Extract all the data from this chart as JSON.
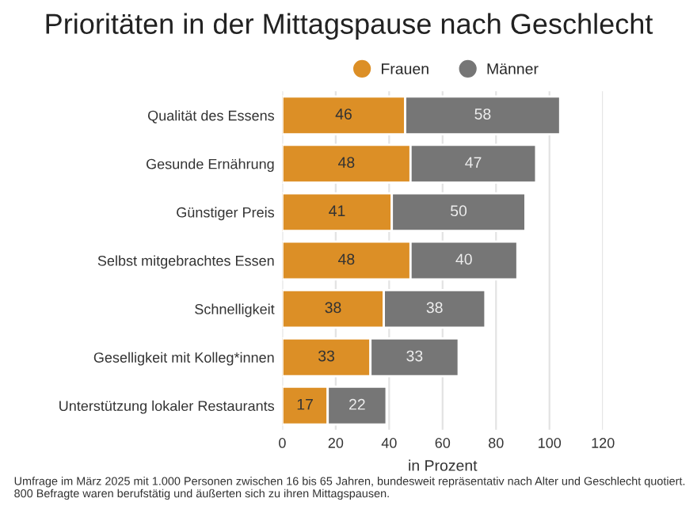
{
  "chart_data": {
    "type": "bar",
    "orientation": "horizontal",
    "stacked": true,
    "title": "Prioritäten in der Mittagspause nach Geschlecht",
    "xlabel": "in Prozent",
    "categories": [
      "Qualität des Essens",
      "Gesunde Ernährung",
      "Günstiger Preis",
      "Selbst mitgebrachtes Essen",
      "Schnelligkeit",
      "Geselligkeit mit Kolleg*innen",
      "Unterstützung lokaler Restaurants"
    ],
    "series": [
      {
        "name": "Frauen",
        "color": "#dc8f26",
        "values": [
          46,
          48,
          41,
          48,
          38,
          33,
          17
        ]
      },
      {
        "name": "Männer",
        "color": "#767676",
        "values": [
          58,
          47,
          50,
          40,
          38,
          33,
          22
        ]
      }
    ],
    "xlim": [
      0,
      120
    ],
    "xticks": [
      0,
      20,
      40,
      60,
      80,
      100,
      120
    ],
    "grid": "x",
    "legend": "top",
    "data_labels": true,
    "annotations": [
      "Umfrage im März 2025 mit 1.000 Personen zwischen 16 bis 65 Jahren, bundesweit repräsentativ nach Alter und Geschlecht quotiert. 800 Befragte waren berufstätig und äußerten sich zu ihren Mittagspausen."
    ]
  }
}
